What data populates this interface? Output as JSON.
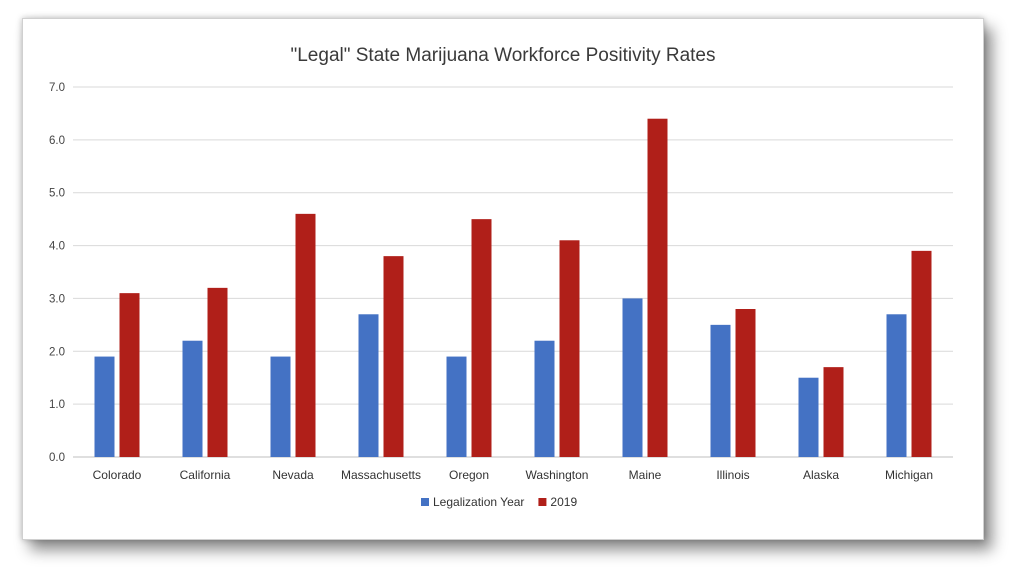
{
  "chart_data": {
    "type": "bar",
    "title": "\"Legal\" State Marijuana Workforce Positivity Rates",
    "categories": [
      "Colorado",
      "California",
      "Nevada",
      "Massachusetts",
      "Oregon",
      "Washington",
      "Maine",
      "Illinois",
      "Alaska",
      "Michigan"
    ],
    "series": [
      {
        "name": "Legalization Year",
        "color": "#4472c4",
        "values": [
          1.9,
          2.2,
          1.9,
          2.7,
          1.9,
          2.2,
          3.0,
          2.5,
          1.5,
          2.7
        ]
      },
      {
        "name": "2019",
        "color": "#b01f19",
        "values": [
          3.1,
          3.2,
          4.6,
          3.8,
          4.5,
          4.1,
          6.4,
          2.8,
          1.7,
          3.9
        ]
      }
    ],
    "ylim": [
      0,
      7
    ],
    "yticks": [
      "0.0",
      "1.0",
      "2.0",
      "3.0",
      "4.0",
      "5.0",
      "6.0",
      "7.0"
    ],
    "grid": true,
    "legend_position": "bottom"
  }
}
